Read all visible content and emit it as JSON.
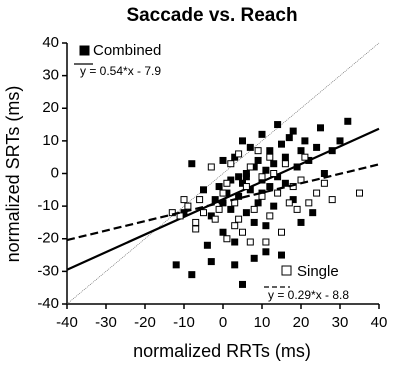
{
  "chart_data": {
    "type": "scatter",
    "title": "Saccade vs. Reach",
    "x_label": "normalized RRTs (ms)",
    "y_label": "normalized SRTs (ms)",
    "xlim": [
      -40,
      40
    ],
    "ylim": [
      -40,
      40
    ],
    "xticks": [
      -40,
      -30,
      -20,
      -10,
      0,
      10,
      20,
      30,
      40
    ],
    "yticks": [
      -40,
      -30,
      -20,
      -10,
      0,
      10,
      20,
      30,
      40
    ],
    "series": [
      {
        "name": "Combined",
        "color": "#000000",
        "marker": "filled-square",
        "line_style": "solid",
        "fit": {
          "slope": 0.54,
          "intercept": -7.9
        },
        "fit_label": "y = 0.54*x - 7.9",
        "x": [
          -12,
          -10,
          -8,
          -8,
          -5,
          -3,
          -3,
          -2,
          -1,
          0,
          0,
          0,
          1,
          2,
          2,
          3,
          3,
          3,
          4,
          4,
          5,
          5,
          5,
          6,
          6,
          7,
          7,
          8,
          8,
          8,
          9,
          9,
          10,
          10,
          10,
          11,
          11,
          12,
          12,
          13,
          13,
          14,
          14,
          15,
          15,
          16,
          16,
          17,
          18,
          18,
          19,
          20,
          20,
          21,
          22,
          23,
          24,
          25,
          26,
          28,
          30,
          32,
          -4,
          6,
          11
        ],
        "values": [
          -28,
          -12,
          -31,
          3,
          -5,
          -27,
          -13,
          -8,
          -4,
          -18,
          -9,
          4,
          -6,
          -2,
          -11,
          -28,
          -21,
          5,
          -1,
          -7,
          -3,
          -34,
          10,
          -12,
          0,
          -5,
          8,
          -15,
          2,
          -26,
          -9,
          4,
          -2,
          12,
          -6,
          -24,
          1,
          7,
          -4,
          -10,
          3,
          15,
          -1,
          9,
          -25,
          5,
          -3,
          11,
          -8,
          13,
          2,
          7,
          -15,
          10,
          4,
          -12,
          8,
          14,
          0,
          7,
          10,
          16,
          -22,
          -1,
          -16
        ]
      },
      {
        "name": "Single",
        "color": "#000000",
        "marker": "open-square",
        "line_style": "dashed",
        "fit": {
          "slope": 0.29,
          "intercept": -8.8
        },
        "fit_label": "y = 0.29*x - 8.8",
        "x": [
          -13,
          -11,
          -9,
          -7,
          -6,
          -5,
          -3,
          -2,
          -1,
          0,
          1,
          1,
          2,
          3,
          4,
          4,
          5,
          6,
          7,
          7,
          8,
          9,
          10,
          10,
          11,
          12,
          12,
          13,
          14,
          15,
          16,
          17,
          18,
          19,
          20,
          21,
          22,
          24,
          26,
          28,
          35,
          -10,
          -7,
          3
        ],
        "values": [
          -12,
          -13,
          -10,
          -17,
          -8,
          -12,
          2,
          -14,
          -11,
          -6,
          -3,
          -20,
          3,
          -9,
          6,
          -14,
          -18,
          -4,
          -21,
          2,
          -11,
          7,
          -7,
          -1,
          -21,
          -13,
          5,
          0,
          -6,
          -18,
          3,
          -9,
          -4,
          -11,
          -2,
          5,
          -9,
          -6,
          -3,
          -8,
          -6,
          -8,
          -15,
          -16
        ]
      }
    ]
  }
}
